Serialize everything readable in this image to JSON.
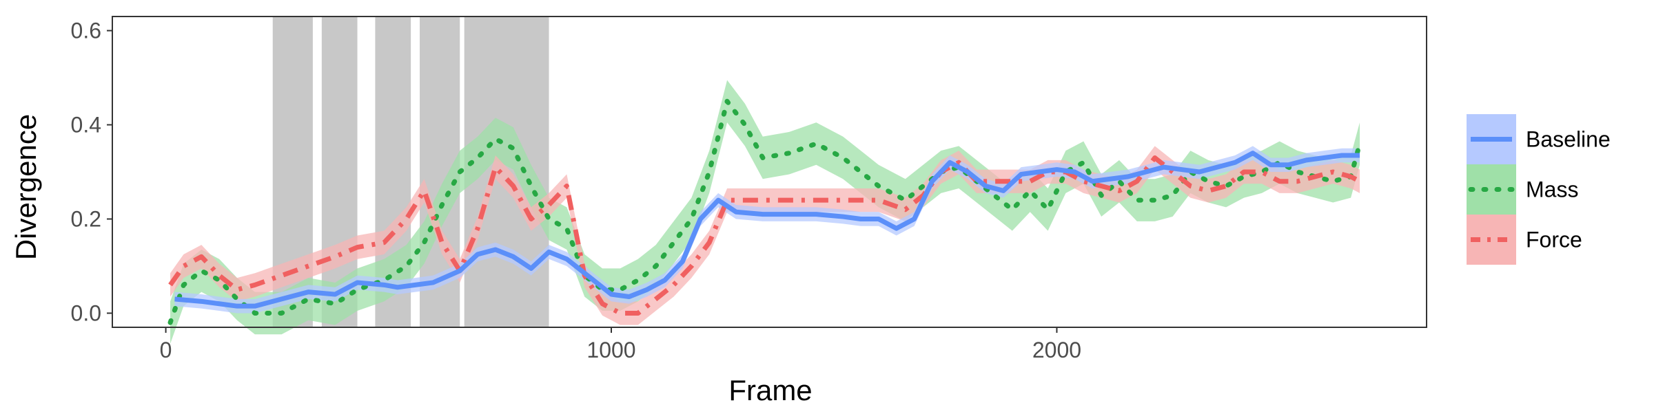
{
  "chart_data": {
    "type": "line",
    "title": "",
    "xlabel": "Frame",
    "ylabel": "Divergence",
    "xlim": [
      -120,
      2830
    ],
    "ylim": [
      -0.03,
      0.63
    ],
    "x_ticks": [
      0,
      1000,
      2000
    ],
    "x_tick_labels": [
      "0",
      "1000",
      "2000"
    ],
    "y_ticks": [
      0.0,
      0.2,
      0.4,
      0.6
    ],
    "y_tick_labels": [
      "0.0",
      "0.2",
      "0.4",
      "0.6"
    ],
    "grid": false,
    "legend_position": "right",
    "shaded_regions": [
      [
        240,
        330
      ],
      [
        350,
        430
      ],
      [
        470,
        550
      ],
      [
        570,
        660
      ],
      [
        670,
        860
      ]
    ],
    "series": [
      {
        "name": "Baseline",
        "color": "#5b8ff9",
        "band_color": "#b5c9ff",
        "linestyle": "solid",
        "x": [
          20,
          80,
          120,
          160,
          200,
          260,
          320,
          380,
          430,
          490,
          520,
          560,
          600,
          660,
          700,
          740,
          780,
          820,
          860,
          900,
          960,
          1000,
          1040,
          1080,
          1120,
          1160,
          1200,
          1240,
          1280,
          1340,
          1400,
          1460,
          1520,
          1560,
          1600,
          1640,
          1680,
          1720,
          1760,
          1800,
          1840,
          1880,
          1920,
          1960,
          2000,
          2040,
          2080,
          2120,
          2160,
          2200,
          2240,
          2280,
          2320,
          2360,
          2400,
          2440,
          2480,
          2520,
          2560,
          2600,
          2640,
          2680
        ],
        "y": [
          0.03,
          0.025,
          0.02,
          0.015,
          0.015,
          0.03,
          0.045,
          0.04,
          0.065,
          0.06,
          0.055,
          0.06,
          0.065,
          0.09,
          0.125,
          0.135,
          0.12,
          0.095,
          0.13,
          0.115,
          0.07,
          0.04,
          0.035,
          0.05,
          0.07,
          0.11,
          0.2,
          0.24,
          0.215,
          0.21,
          0.21,
          0.21,
          0.205,
          0.2,
          0.2,
          0.18,
          0.2,
          0.28,
          0.32,
          0.3,
          0.27,
          0.26,
          0.295,
          0.3,
          0.305,
          0.3,
          0.28,
          0.285,
          0.29,
          0.3,
          0.31,
          0.305,
          0.3,
          0.31,
          0.32,
          0.34,
          0.315,
          0.315,
          0.325,
          0.33,
          0.335,
          0.335
        ],
        "band_half_width": 0.015
      },
      {
        "name": "Mass",
        "color": "#27a844",
        "band_color": "#9fe0a8",
        "linestyle": "dotted",
        "x": [
          10,
          40,
          80,
          120,
          160,
          200,
          260,
          320,
          380,
          430,
          490,
          540,
          580,
          620,
          660,
          700,
          740,
          780,
          820,
          860,
          900,
          940,
          980,
          1020,
          1060,
          1100,
          1140,
          1180,
          1220,
          1260,
          1300,
          1340,
          1400,
          1460,
          1520,
          1560,
          1600,
          1660,
          1700,
          1740,
          1780,
          1820,
          1860,
          1900,
          1940,
          1980,
          2020,
          2060,
          2100,
          2140,
          2180,
          2220,
          2260,
          2300,
          2340,
          2380,
          2420,
          2460,
          2500,
          2540,
          2580,
          2620,
          2660,
          2680
        ],
        "y": [
          -0.02,
          0.06,
          0.09,
          0.07,
          0.03,
          0.0,
          0.0,
          0.03,
          0.02,
          0.05,
          0.07,
          0.1,
          0.15,
          0.23,
          0.3,
          0.33,
          0.37,
          0.35,
          0.27,
          0.2,
          0.18,
          0.08,
          0.05,
          0.05,
          0.07,
          0.1,
          0.15,
          0.2,
          0.3,
          0.45,
          0.4,
          0.33,
          0.34,
          0.36,
          0.33,
          0.3,
          0.27,
          0.24,
          0.27,
          0.3,
          0.31,
          0.28,
          0.25,
          0.22,
          0.26,
          0.22,
          0.3,
          0.32,
          0.25,
          0.28,
          0.24,
          0.24,
          0.25,
          0.3,
          0.28,
          0.27,
          0.29,
          0.3,
          0.32,
          0.3,
          0.29,
          0.28,
          0.29,
          0.36
        ],
        "band_half_width": 0.045
      },
      {
        "name": "Force",
        "color": "#f06060",
        "band_color": "#f7b5b5",
        "linestyle": "dashdot",
        "x": [
          10,
          40,
          80,
          120,
          160,
          200,
          260,
          320,
          380,
          430,
          490,
          540,
          580,
          620,
          660,
          700,
          740,
          780,
          820,
          860,
          900,
          940,
          980,
          1020,
          1060,
          1100,
          1140,
          1180,
          1220,
          1260,
          1300,
          1340,
          1400,
          1460,
          1520,
          1560,
          1600,
          1660,
          1700,
          1740,
          1780,
          1820,
          1860,
          1900,
          1940,
          1980,
          2020,
          2060,
          2100,
          2140,
          2180,
          2220,
          2260,
          2300,
          2340,
          2380,
          2420,
          2460,
          2500,
          2540,
          2580,
          2620,
          2660,
          2680
        ],
        "y": [
          0.06,
          0.1,
          0.12,
          0.08,
          0.05,
          0.06,
          0.08,
          0.1,
          0.12,
          0.14,
          0.15,
          0.2,
          0.26,
          0.15,
          0.09,
          0.18,
          0.31,
          0.27,
          0.2,
          0.23,
          0.27,
          0.08,
          0.02,
          0.0,
          0.0,
          0.03,
          0.06,
          0.1,
          0.15,
          0.24,
          0.24,
          0.24,
          0.24,
          0.24,
          0.24,
          0.24,
          0.24,
          0.22,
          0.25,
          0.3,
          0.32,
          0.28,
          0.28,
          0.28,
          0.28,
          0.3,
          0.3,
          0.28,
          0.27,
          0.26,
          0.28,
          0.33,
          0.3,
          0.27,
          0.26,
          0.27,
          0.3,
          0.3,
          0.28,
          0.28,
          0.29,
          0.3,
          0.29,
          0.28
        ],
        "band_half_width": 0.025
      }
    ]
  }
}
